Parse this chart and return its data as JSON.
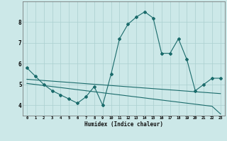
{
  "xlabel": "Humidex (Indice chaleur)",
  "background_color": "#cce8e8",
  "line_color": "#1a6b6b",
  "x_values": [
    0,
    1,
    2,
    3,
    4,
    5,
    6,
    7,
    8,
    9,
    10,
    11,
    12,
    13,
    14,
    15,
    16,
    17,
    18,
    19,
    20,
    21,
    22,
    23
  ],
  "series1": [
    5.8,
    5.4,
    5.0,
    4.7,
    4.5,
    4.3,
    4.1,
    4.4,
    4.9,
    4.0,
    5.5,
    7.2,
    7.9,
    8.25,
    8.5,
    8.2,
    6.5,
    6.5,
    7.2,
    6.2,
    4.7,
    5.0,
    5.3,
    5.3
  ],
  "linear1": [
    5.25,
    5.22,
    5.19,
    5.16,
    5.13,
    5.1,
    5.07,
    5.04,
    5.01,
    4.98,
    4.95,
    4.92,
    4.89,
    4.86,
    4.83,
    4.8,
    4.77,
    4.74,
    4.71,
    4.68,
    4.65,
    4.62,
    4.59,
    4.56
  ],
  "linear2": [
    5.05,
    5.0,
    4.95,
    4.9,
    4.85,
    4.8,
    4.75,
    4.7,
    4.65,
    4.6,
    4.55,
    4.5,
    4.45,
    4.4,
    4.35,
    4.3,
    4.25,
    4.2,
    4.15,
    4.1,
    4.05,
    4.0,
    3.95,
    3.58
  ],
  "ylim": [
    3.5,
    9.0
  ],
  "yticks": [
    4,
    5,
    6,
    7,
    8
  ],
  "xlim": [
    -0.5,
    23.5
  ]
}
